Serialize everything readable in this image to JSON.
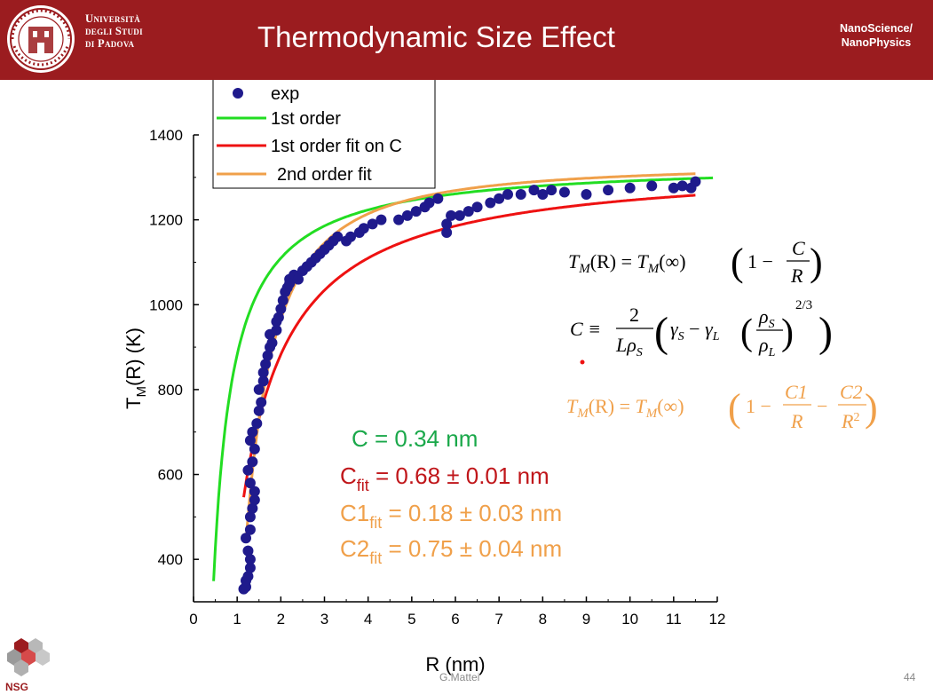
{
  "slide": {
    "title": "Thermodynamic Size Effect",
    "university": [
      "Università",
      "degli Studi",
      "di Padova"
    ],
    "badge": [
      "NanoScience/",
      "NanoPhysics"
    ],
    "author": "G.Mattei",
    "page_number": "44",
    "logo_text": "NSG"
  },
  "colors": {
    "header": "#9b1c1f",
    "exp": "#1f1a8c",
    "first_order": "#22dd22",
    "first_order_fit": "#ee1111",
    "second_order_fit": "#f0a04a",
    "c_text": "#1aa84a",
    "cfit_text": "#c0161a",
    "c2_text": "#f0a04a"
  },
  "chart_data": {
    "type": "scatter",
    "xlabel": "R (nm)",
    "ylabel_main": "T",
    "ylabel_sub": "M",
    "ylabel_rest": "(R) (K)",
    "xlim": [
      0,
      12
    ],
    "ylim": [
      300,
      1400
    ],
    "xticks": [
      "0",
      "1",
      "2",
      "3",
      "4",
      "5",
      "6",
      "7",
      "8",
      "9",
      "10",
      "11",
      "12"
    ],
    "yticks": [
      "400",
      "600",
      "800",
      "1000",
      "1200",
      "1400"
    ],
    "legend_position": "top-left",
    "legend": [
      "exp",
      "1st order",
      "1st order fit on C",
      "2nd order fit"
    ],
    "series": [
      {
        "name": "exp",
        "kind": "scatter",
        "points": [
          [
            1.15,
            330
          ],
          [
            1.2,
            335
          ],
          [
            1.2,
            350
          ],
          [
            1.25,
            360
          ],
          [
            1.3,
            380
          ],
          [
            1.3,
            400
          ],
          [
            1.25,
            420
          ],
          [
            1.2,
            450
          ],
          [
            1.3,
            470
          ],
          [
            1.3,
            500
          ],
          [
            1.35,
            520
          ],
          [
            1.4,
            540
          ],
          [
            1.4,
            560
          ],
          [
            1.3,
            580
          ],
          [
            1.25,
            610
          ],
          [
            1.35,
            630
          ],
          [
            1.4,
            660
          ],
          [
            1.3,
            680
          ],
          [
            1.35,
            700
          ],
          [
            1.45,
            720
          ],
          [
            1.5,
            750
          ],
          [
            1.55,
            770
          ],
          [
            1.5,
            800
          ],
          [
            1.6,
            820
          ],
          [
            1.6,
            840
          ],
          [
            1.65,
            860
          ],
          [
            1.7,
            880
          ],
          [
            1.75,
            900
          ],
          [
            1.8,
            910
          ],
          [
            1.75,
            930
          ],
          [
            1.9,
            940
          ],
          [
            1.9,
            960
          ],
          [
            1.95,
            970
          ],
          [
            2.0,
            990
          ],
          [
            2.05,
            1010
          ],
          [
            2.1,
            1030
          ],
          [
            2.15,
            1040
          ],
          [
            2.2,
            1060
          ],
          [
            2.3,
            1070
          ],
          [
            2.2,
            1050
          ],
          [
            2.4,
            1060
          ],
          [
            2.5,
            1080
          ],
          [
            2.6,
            1090
          ],
          [
            2.7,
            1100
          ],
          [
            2.8,
            1110
          ],
          [
            2.9,
            1120
          ],
          [
            3.0,
            1130
          ],
          [
            3.1,
            1140
          ],
          [
            3.2,
            1150
          ],
          [
            3.3,
            1160
          ],
          [
            3.5,
            1150
          ],
          [
            3.6,
            1160
          ],
          [
            3.8,
            1170
          ],
          [
            3.9,
            1180
          ],
          [
            4.1,
            1190
          ],
          [
            4.3,
            1200
          ],
          [
            4.7,
            1200
          ],
          [
            4.9,
            1210
          ],
          [
            5.1,
            1220
          ],
          [
            5.3,
            1230
          ],
          [
            5.4,
            1240
          ],
          [
            5.6,
            1250
          ],
          [
            5.8,
            1170
          ],
          [
            5.8,
            1190
          ],
          [
            5.9,
            1210
          ],
          [
            6.1,
            1210
          ],
          [
            6.3,
            1220
          ],
          [
            6.5,
            1230
          ],
          [
            6.8,
            1240
          ],
          [
            7.0,
            1250
          ],
          [
            7.2,
            1260
          ],
          [
            7.5,
            1260
          ],
          [
            7.8,
            1270
          ],
          [
            8.0,
            1260
          ],
          [
            8.2,
            1270
          ],
          [
            8.5,
            1265
          ],
          [
            9.0,
            1260
          ],
          [
            9.5,
            1270
          ],
          [
            10.0,
            1275
          ],
          [
            10.5,
            1280
          ],
          [
            11.0,
            1275
          ],
          [
            11.2,
            1280
          ],
          [
            11.4,
            1275
          ],
          [
            11.5,
            1290
          ]
        ]
      },
      {
        "name": "1st order",
        "kind": "curve",
        "tinf": 1337,
        "c": 0.34,
        "xrange": [
          0.46,
          11.9
        ]
      },
      {
        "name": "1st order fit on C",
        "kind": "curve",
        "tinf": 1337,
        "c": 0.68,
        "xrange": [
          1.15,
          11.5
        ]
      },
      {
        "name": "2nd order fit",
        "kind": "curve2",
        "tinf": 1337,
        "c1": 0.18,
        "c2": 0.75,
        "xrange": [
          1.2,
          11.5
        ]
      }
    ]
  },
  "annotations": {
    "c_value": "C  = 0.34 nm",
    "cfit_main": "C",
    "cfit_sub": "fit",
    "cfit_rest": " = 0.68 ± 0.01 nm",
    "c1fit_main": "C1",
    "c1fit_sub": "fit",
    "c1fit_rest": " = 0.18 ± 0.03 nm",
    "c2fit_main": "C2",
    "c2fit_sub": "fit",
    "c2fit_rest": " = 0.75 ± 0.04 nm"
  },
  "formulas": {
    "eq1_lhs": "T",
    "eq1_sub": "M",
    "eq1_arg": "(R) = ",
    "eq1_rhs_t": "T",
    "eq1_rhs_sub": "M",
    "eq1_rhs_arg": "(∞)",
    "one_minus": "1 −",
    "frac_c": "C",
    "frac_r": "R",
    "eq2_c_def": "C ≡",
    "num_two": "2",
    "den_l_rho_s": "Lρ",
    "den_sub_s": "S",
    "gamma_s": "γ",
    "gamma_s_sub": "S",
    "minus": " − ",
    "gamma_l": "γ",
    "gamma_l_sub": "L",
    "rho_s": "ρ",
    "rho_s_sub": "S",
    "rho_l": "ρ",
    "rho_l_sub": "L",
    "exp_23": "2/3",
    "eq3_c1": "C1",
    "eq3_c2": "C2",
    "eq3_r": "R",
    "eq3_r2": "R",
    "eq3_sq": "2"
  }
}
